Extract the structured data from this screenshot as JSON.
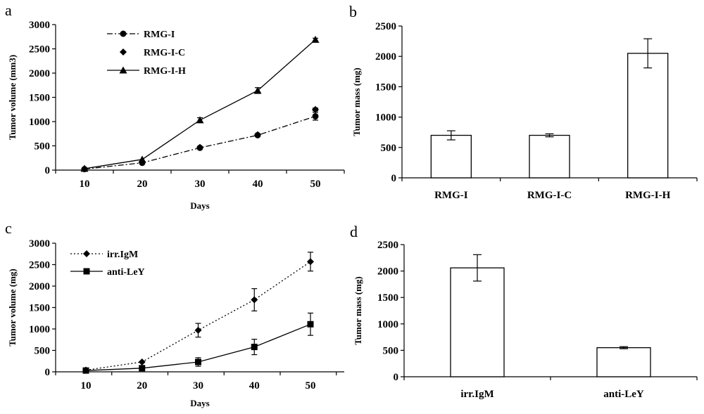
{
  "chart_data": [
    {
      "panel": "a",
      "type": "line",
      "x": [
        10,
        20,
        30,
        40,
        50
      ],
      "xlabel": "Days",
      "ylabel": "Tumor volume (mm3)",
      "ylim": [
        0,
        3000
      ],
      "yticks": [
        0,
        500,
        1000,
        1500,
        2000,
        2500,
        3000
      ],
      "legend_position": "top-left",
      "series": [
        {
          "name": "RMG-I",
          "values": [
            20,
            150,
            460,
            720,
            1110
          ],
          "errors": [
            0,
            0,
            0,
            0,
            80
          ],
          "marker": "circle",
          "line": "dashdot"
        },
        {
          "name": "RMG-I-C",
          "values": [
            25,
            170,
            470,
            730,
            1250
          ],
          "errors": [
            0,
            0,
            0,
            0,
            30
          ],
          "marker": "diamond",
          "line": "none"
        },
        {
          "name": "RMG-I-H",
          "values": [
            30,
            220,
            1030,
            1640,
            2690
          ],
          "errors": [
            0,
            0,
            50,
            60,
            30
          ],
          "marker": "triangle",
          "line": "solid"
        }
      ]
    },
    {
      "panel": "b",
      "type": "bar",
      "categories": [
        "RMG-I",
        "RMG-I-C",
        "RMG-I-H"
      ],
      "values": [
        700,
        700,
        2050
      ],
      "errors": [
        75,
        25,
        240
      ],
      "xlabel": "",
      "ylabel": "Tumor mass (mg)",
      "ylim": [
        0,
        2500
      ],
      "yticks": [
        0,
        500,
        1000,
        1500,
        2000,
        2500
      ]
    },
    {
      "panel": "c",
      "type": "line",
      "x": [
        10,
        20,
        30,
        40,
        50
      ],
      "xlabel": "Days",
      "ylabel": "Tumor volume (mg)",
      "ylim": [
        0,
        3000
      ],
      "yticks": [
        0,
        500,
        1000,
        1500,
        2000,
        2500,
        3000
      ],
      "legend_position": "top-left",
      "series": [
        {
          "name": "irr.IgM",
          "values": [
            40,
            230,
            970,
            1680,
            2570
          ],
          "errors": [
            0,
            0,
            160,
            260,
            220
          ],
          "marker": "diamond",
          "line": "dotted"
        },
        {
          "name": "anti-LeY",
          "values": [
            30,
            85,
            230,
            580,
            1110
          ],
          "errors": [
            0,
            0,
            100,
            180,
            260
          ],
          "marker": "square",
          "line": "solid"
        }
      ]
    },
    {
      "panel": "d",
      "type": "bar",
      "categories": [
        "irr.IgM",
        "anti-LeY"
      ],
      "values": [
        2060,
        550
      ],
      "errors": [
        250,
        20
      ],
      "xlabel": "",
      "ylabel": "Tumor mass (mg)",
      "ylim": [
        0,
        2500
      ],
      "yticks": [
        0,
        500,
        1000,
        1500,
        2000,
        2500
      ]
    }
  ]
}
